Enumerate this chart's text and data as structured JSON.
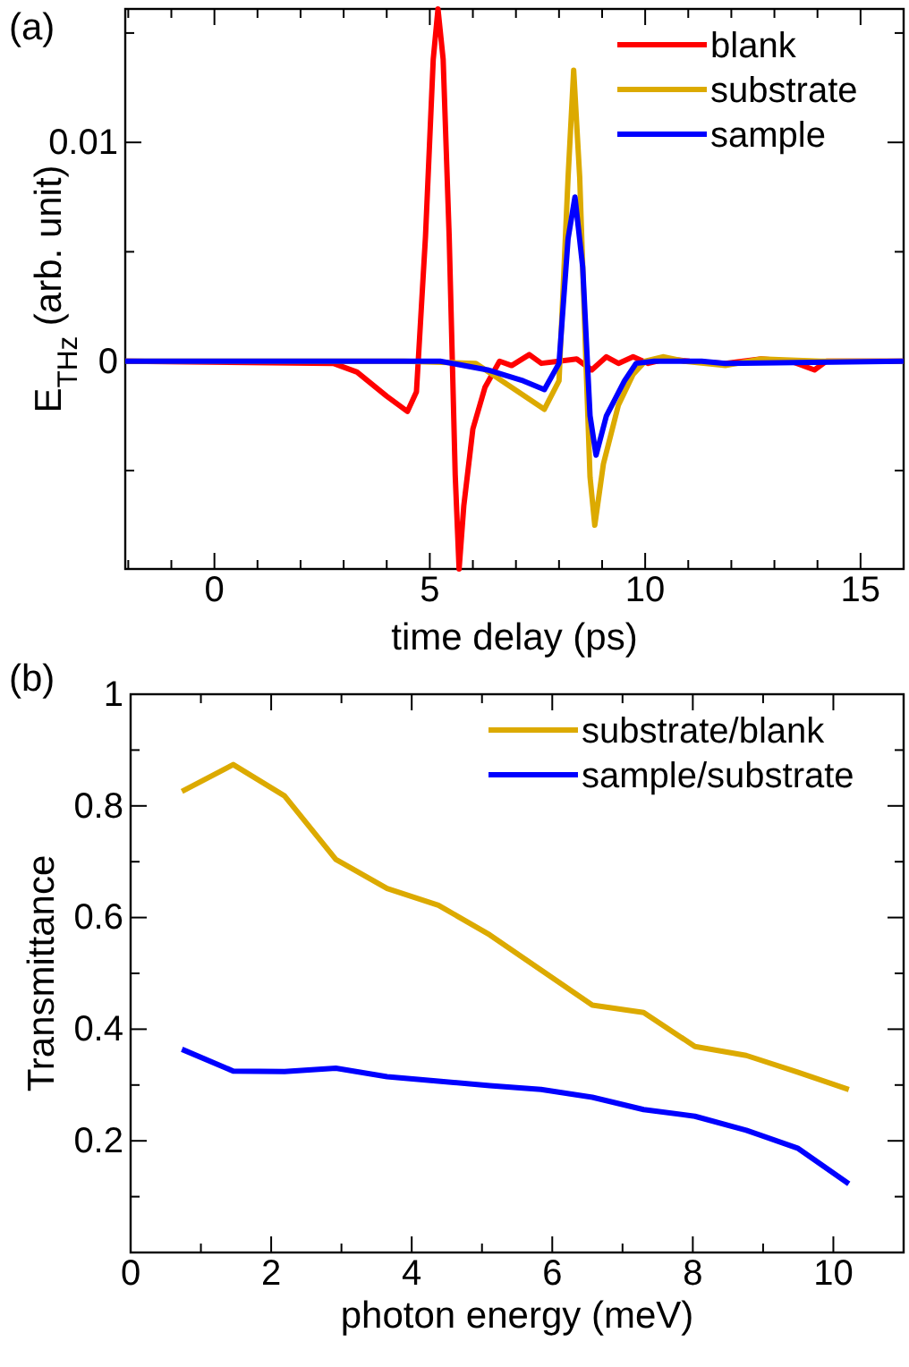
{
  "chart_data": [
    {
      "type": "line",
      "title": "(a)",
      "xlabel": "time delay (ps)",
      "ylabel": "E$_{THz}$ (arb. unit)",
      "xlim": [
        -2.07,
        16
      ],
      "ylim": [
        -0.0095,
        0.0161
      ],
      "xticks": [
        {
          "value": -2,
          "label": null
        },
        {
          "value": -1,
          "label": null
        },
        0,
        {
          "value": 1,
          "label": null
        },
        {
          "value": 2,
          "label": null
        },
        {
          "value": 3,
          "label": null
        },
        {
          "value": 4,
          "label": null
        },
        5,
        {
          "value": 6,
          "label": null
        },
        {
          "value": 7,
          "label": null
        },
        {
          "value": 8,
          "label": null
        },
        {
          "value": 9,
          "label": null
        },
        10,
        {
          "value": 11,
          "label": null
        },
        {
          "value": 12,
          "label": null
        },
        {
          "value": 13,
          "label": null
        },
        {
          "value": 14,
          "label": null
        },
        15
      ],
      "yticks": [
        {
          "value": -0.005,
          "label": null
        },
        0,
        {
          "value": 0.005,
          "label": null
        },
        0.01,
        {
          "value": 0.015,
          "label": null
        }
      ],
      "legend": "top right",
      "grid": false,
      "series": [
        {
          "name": "blank",
          "color": "#ff0000",
          "x": [
            -2.07,
            2.76,
            3.31,
            4.0,
            4.48,
            4.69,
            4.9,
            5.08,
            5.19,
            5.31,
            5.45,
            5.59,
            5.68,
            5.79,
            6.0,
            6.28,
            6.62,
            6.9,
            7.31,
            7.59,
            8.0,
            8.41,
            8.76,
            9.1,
            9.38,
            9.72,
            10.07,
            10.48,
            11.03,
            11.86,
            12.69,
            13.38,
            13.93,
            14.21,
            15.17,
            16.0
          ],
          "values": [
            0,
            -0.0001,
            -0.0005,
            -0.0016,
            -0.0023,
            -0.0014,
            0.0057,
            0.0138,
            0.0161,
            0.0138,
            0.0057,
            -0.0052,
            -0.0095,
            -0.0066,
            -0.0031,
            -0.0012,
            0,
            -0.0002,
            0.0003,
            -0.0001,
            0,
            0.0001,
            -0.0004,
            0.0002,
            -0.0001,
            0.0002,
            -0.0001,
            0.0001,
            0,
            -0.0001,
            0.0001,
            0,
            -0.0004,
            0,
            0,
            0
          ]
        },
        {
          "name": "substrate",
          "color": "#dcaa00",
          "x": [
            -2.07,
            4.41,
            6.07,
            6.9,
            7.66,
            8.0,
            8.21,
            8.34,
            8.48,
            8.62,
            8.72,
            8.83,
            9.03,
            9.38,
            9.72,
            10.0,
            10.41,
            10.9,
            11.86,
            12.69,
            14.07,
            16.0
          ],
          "values": [
            0,
            0,
            -0.0001,
            -0.0012,
            -0.0022,
            -0.0009,
            0.0084,
            0.0133,
            0.0084,
            0.0002,
            -0.0053,
            -0.0075,
            -0.0047,
            -0.002,
            -0.0006,
            0,
            0.0002,
            0,
            -0.0002,
            0.0001,
            0,
            0
          ]
        },
        {
          "name": "sample",
          "color": "#0000ff",
          "x": [
            -2.07,
            5.24,
            6.34,
            7.17,
            7.66,
            8.0,
            8.21,
            8.37,
            8.55,
            8.72,
            8.86,
            9.1,
            9.52,
            9.79,
            10.21,
            11.31,
            11.86,
            16.0
          ],
          "values": [
            0,
            0,
            -0.0004,
            -0.0009,
            -0.0013,
            -0.0001,
            0.0056,
            0.0075,
            0.0043,
            -0.0025,
            -0.0043,
            -0.0025,
            -0.0009,
            -0.0001,
            0,
            0,
            -0.0001,
            0
          ]
        }
      ]
    },
    {
      "type": "line",
      "title": "(b)",
      "xlabel": "photon energy (meV)",
      "ylabel": "Transmittance",
      "xlim": [
        0,
        11
      ],
      "ylim": [
        0,
        1
      ],
      "xticks": [
        0,
        {
          "value": 1,
          "label": null
        },
        2,
        {
          "value": 3,
          "label": null
        },
        4,
        {
          "value": 5,
          "label": null
        },
        6,
        {
          "value": 7,
          "label": null
        },
        8,
        {
          "value": 9,
          "label": null
        },
        10
      ],
      "yticks": [
        {
          "value": 0.1,
          "label": null
        },
        0.2,
        {
          "value": 0.3,
          "label": null
        },
        0.4,
        {
          "value": 0.5,
          "label": null
        },
        0.6,
        {
          "value": 0.7,
          "label": null
        },
        0.8,
        {
          "value": 0.9,
          "label": null
        },
        1
      ],
      "legend": "top right",
      "grid": false,
      "x": [
        0.73,
        1.46,
        2.19,
        2.92,
        3.65,
        4.38,
        5.11,
        5.84,
        6.57,
        7.3,
        8.03,
        8.76,
        9.49,
        10.22
      ],
      "series": [
        {
          "name": "substrate/blank",
          "color": "#dcaa00",
          "values": [
            0.826,
            0.874,
            0.818,
            0.704,
            0.652,
            0.622,
            0.569,
            0.506,
            0.443,
            0.43,
            0.369,
            0.353,
            0.323,
            0.292
          ]
        },
        {
          "name": "sample/substrate",
          "color": "#0000ff",
          "values": [
            0.364,
            0.325,
            0.324,
            0.33,
            0.315,
            0.307,
            0.299,
            0.292,
            0.278,
            0.256,
            0.244,
            0.219,
            0.187,
            0.123
          ]
        }
      ]
    }
  ]
}
